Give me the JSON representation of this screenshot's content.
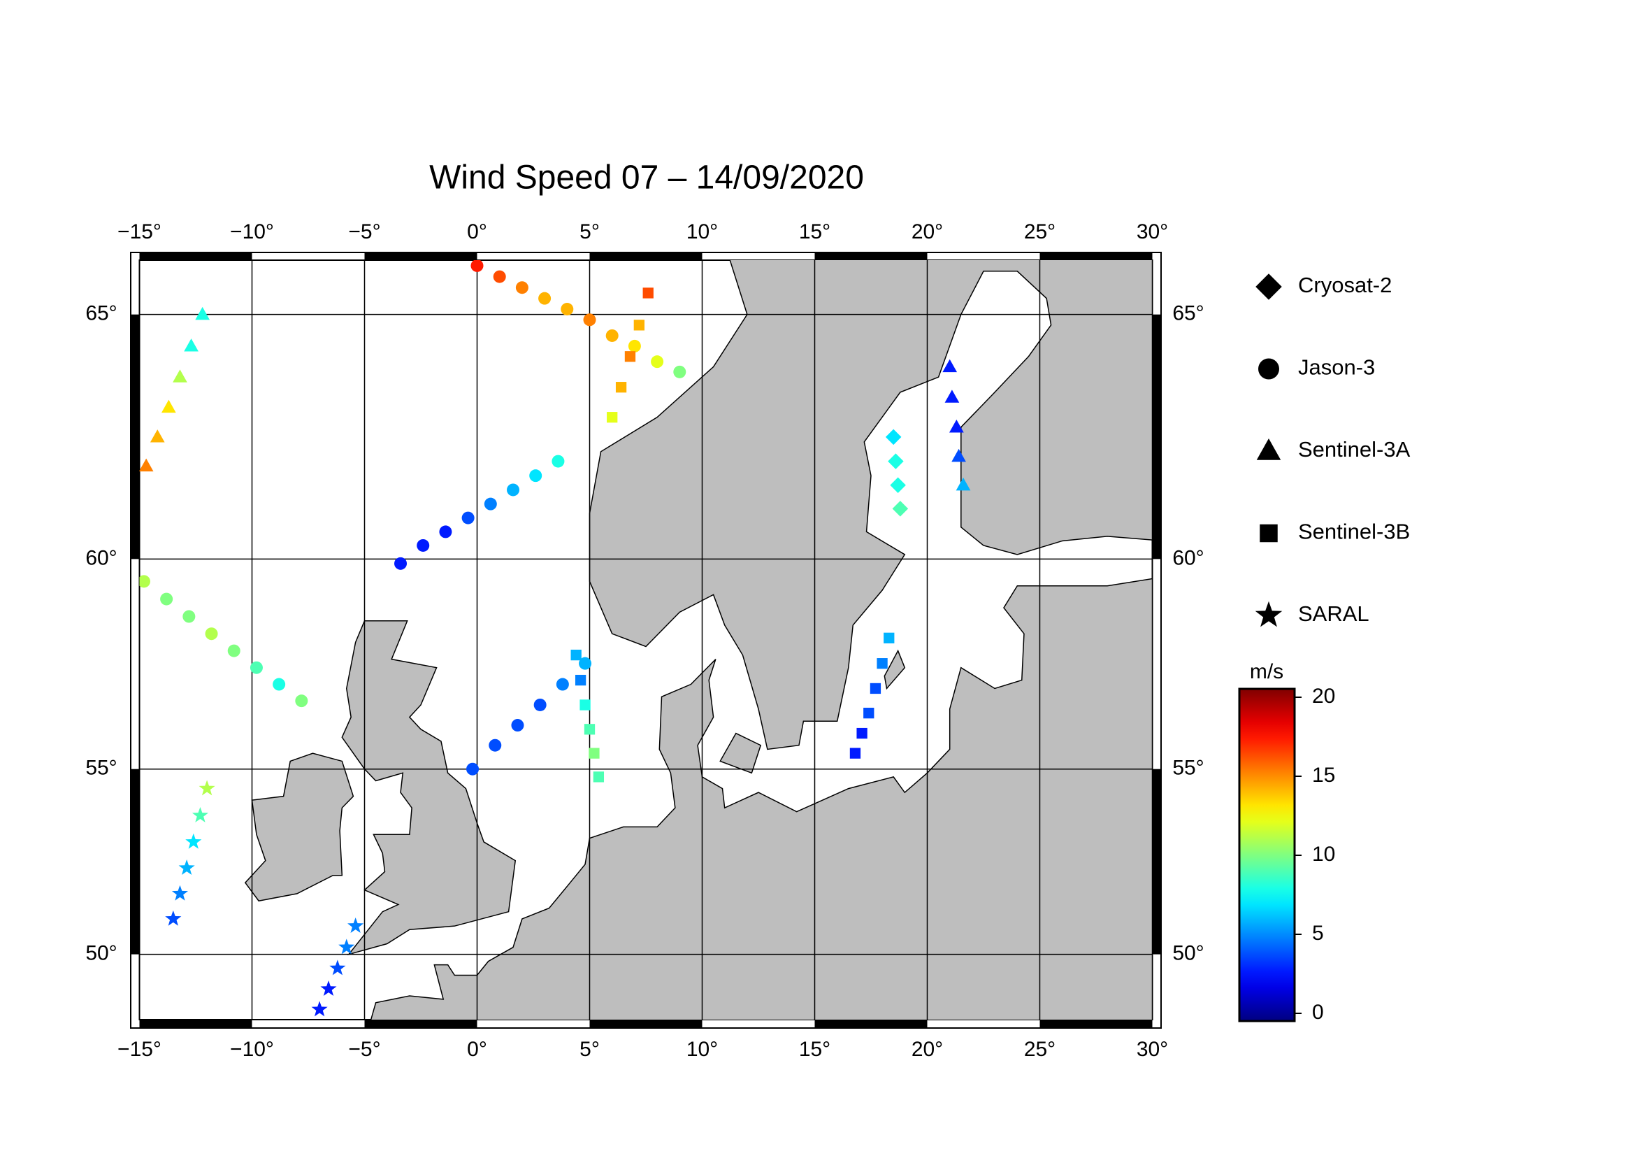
{
  "chart_data": {
    "type": "map",
    "title": "Wind Speed 07 – 14/09/2020",
    "xlim": [
      -15,
      30
    ],
    "ylim": [
      48.1,
      66.0
    ],
    "xticks": [
      {
        "value": -15,
        "label": "−15°"
      },
      {
        "value": -10,
        "label": "−10°"
      },
      {
        "value": -5,
        "label": "−5°"
      },
      {
        "value": 0,
        "label": "0°"
      },
      {
        "value": 5,
        "label": "5°"
      },
      {
        "value": 10,
        "label": "10°"
      },
      {
        "value": 15,
        "label": "15°"
      },
      {
        "value": 20,
        "label": "20°"
      },
      {
        "value": 25,
        "label": "25°"
      },
      {
        "value": 30,
        "label": "30°"
      }
    ],
    "yticks": [
      {
        "value": 50,
        "label": "50°"
      },
      {
        "value": 55,
        "label": "55°"
      },
      {
        "value": 60,
        "label": "60°"
      },
      {
        "value": 65,
        "label": "65°"
      }
    ],
    "grid": true,
    "colorbar": {
      "label": "m/s",
      "clim": [
        0,
        20
      ],
      "ticks": [
        0,
        5,
        10,
        15,
        20
      ],
      "colormap": "jet"
    },
    "series": [
      {
        "name": "Cryosat-2",
        "marker": "diamond",
        "tracks": [
          [
            [
              18.5,
              62.6,
              7
            ],
            [
              18.6,
              62.1,
              8
            ],
            [
              18.7,
              61.6,
              8
            ],
            [
              18.8,
              61.1,
              9
            ]
          ]
        ]
      },
      {
        "name": "Jason-3",
        "marker": "circle",
        "tracks": [
          [
            [
              -3.4,
              59.9,
              3
            ],
            [
              -2.4,
              60.3,
              3
            ],
            [
              -1.4,
              60.6,
              3
            ],
            [
              -0.4,
              60.9,
              4
            ],
            [
              0.6,
              61.2,
              5
            ],
            [
              1.6,
              61.5,
              6
            ],
            [
              2.6,
              61.8,
              7
            ],
            [
              3.6,
              62.1,
              8
            ]
          ],
          [
            [
              -0.2,
              55.0,
              4
            ],
            [
              0.8,
              55.6,
              4
            ],
            [
              1.8,
              56.1,
              4
            ],
            [
              2.8,
              56.6,
              4
            ],
            [
              3.8,
              57.1,
              5
            ],
            [
              4.8,
              57.6,
              6
            ]
          ],
          [
            [
              0,
              65.9,
              17
            ],
            [
              1,
              65.7,
              16
            ],
            [
              2,
              65.5,
              15
            ],
            [
              3,
              65.3,
              14
            ],
            [
              4,
              65.1,
              14
            ],
            [
              5,
              64.9,
              15
            ],
            [
              6,
              64.6,
              14
            ],
            [
              7,
              64.4,
              13
            ],
            [
              8,
              64.1,
              12
            ],
            [
              9,
              63.9,
              10
            ]
          ],
          [
            [
              -14.8,
              59.5,
              11
            ],
            [
              -13.8,
              59.1,
              10
            ],
            [
              -12.8,
              58.7,
              10
            ],
            [
              -11.8,
              58.3,
              11
            ],
            [
              -10.8,
              57.9,
              10
            ],
            [
              -9.8,
              57.5,
              9
            ],
            [
              -8.8,
              57.1,
              8
            ],
            [
              -7.8,
              56.7,
              10
            ]
          ]
        ]
      },
      {
        "name": "Sentinel-3A",
        "marker": "triangle",
        "tracks": [
          [
            [
              -14.7,
              62.0,
              15
            ],
            [
              -14.2,
              62.6,
              14
            ],
            [
              -13.7,
              63.2,
              13
            ],
            [
              -13.2,
              63.8,
              11
            ],
            [
              -12.7,
              64.4,
              8
            ],
            [
              -12.2,
              65.0,
              8
            ]
          ],
          [
            [
              21,
              64,
              3
            ],
            [
              21.1,
              63.4,
              3
            ],
            [
              21.3,
              62.8,
              3
            ],
            [
              21.4,
              62.2,
              4
            ],
            [
              21.6,
              61.6,
              6
            ]
          ]
        ]
      },
      {
        "name": "Sentinel-3B",
        "marker": "square",
        "tracks": [
          [
            [
              4.4,
              57.8,
              6
            ],
            [
              4.6,
              57.2,
              5
            ],
            [
              4.8,
              56.6,
              8
            ],
            [
              5,
              56,
              9
            ],
            [
              5.2,
              55.4,
              10
            ],
            [
              5.4,
              54.8,
              9
            ]
          ],
          [
            [
              16.8,
              55.4,
              3
            ],
            [
              17.1,
              55.9,
              3
            ],
            [
              17.4,
              56.4,
              4
            ],
            [
              17.7,
              57,
              4
            ],
            [
              18,
              57.6,
              5
            ],
            [
              18.3,
              58.2,
              6
            ]
          ],
          [
            [
              6,
              63,
              12
            ],
            [
              6.4,
              63.6,
              14
            ],
            [
              6.8,
              64.2,
              15
            ],
            [
              7.2,
              64.8,
              14
            ],
            [
              7.6,
              65.4,
              16
            ]
          ]
        ]
      },
      {
        "name": "SARAL",
        "marker": "star",
        "tracks": [
          [
            [
              -13.5,
              51,
              4
            ],
            [
              -13.2,
              51.7,
              5
            ],
            [
              -12.9,
              52.4,
              6
            ],
            [
              -12.6,
              53.1,
              7
            ],
            [
              -12.3,
              53.8,
              9
            ],
            [
              -12,
              54.5,
              11
            ]
          ],
          [
            [
              -7,
              48.4,
              3
            ],
            [
              -6.6,
              49,
              3
            ],
            [
              -6.2,
              49.6,
              4
            ],
            [
              -5.8,
              50.2,
              5
            ],
            [
              -5.4,
              50.8,
              5
            ]
          ]
        ]
      }
    ]
  }
}
